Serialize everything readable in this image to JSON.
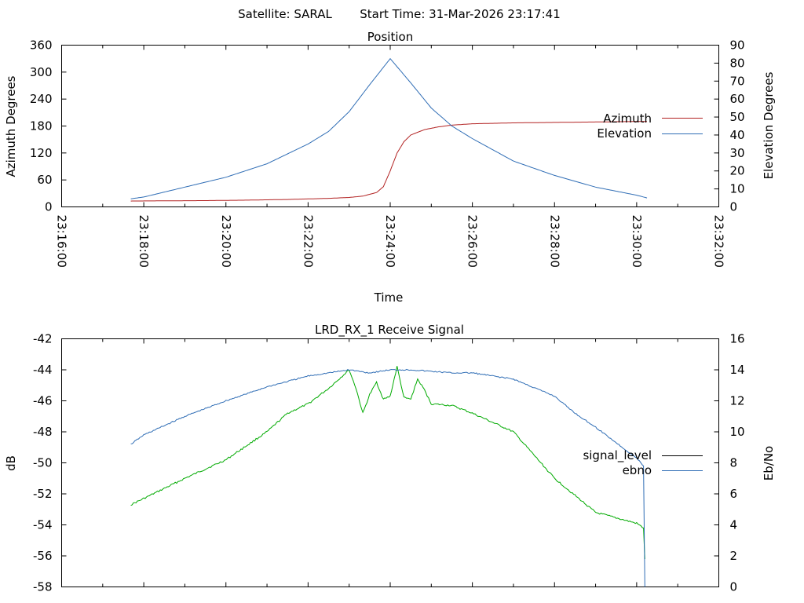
{
  "header": {
    "satellite": "Satellite: SARAL",
    "start_time": "Start Time: 31-Mar-2026 23:17:41"
  },
  "chart_data": [
    {
      "id": "position",
      "type": "line",
      "title": "Position",
      "xlabel": "Time",
      "ylabel": "Azimuth Degrees",
      "y2label": "Elevation Degrees",
      "xlim": [
        "23:16:00",
        "23:32:00"
      ],
      "x_ticks": [
        "23:16:00",
        "23:18:00",
        "23:20:00",
        "23:22:00",
        "23:24:00",
        "23:26:00",
        "23:28:00",
        "23:30:00",
        "23:32:00"
      ],
      "ylim": [
        0,
        360
      ],
      "y_ticks": [
        "0",
        "60",
        "120",
        "180",
        "240",
        "300",
        "360"
      ],
      "y2lim": [
        0,
        90
      ],
      "y2_ticks": [
        "0",
        "10",
        "20",
        "30",
        "40",
        "50",
        "60",
        "70",
        "80",
        "90"
      ],
      "grid": false,
      "legend": "right",
      "series": [
        {
          "name": "Azimuth",
          "axis": "y",
          "color": "#b22222",
          "x": [
            "23:17:41",
            "23:18:30",
            "23:19:30",
            "23:20:30",
            "23:21:30",
            "23:22:30",
            "23:23:00",
            "23:23:20",
            "23:23:40",
            "23:23:50",
            "23:24:00",
            "23:24:10",
            "23:24:20",
            "23:24:30",
            "23:24:50",
            "23:25:10",
            "23:25:30",
            "23:26:00",
            "23:27:00",
            "23:28:00",
            "23:29:00",
            "23:30:00",
            "23:30:15"
          ],
          "values": [
            13,
            13.5,
            14,
            15,
            16.5,
            19,
            21,
            24,
            32,
            45,
            80,
            120,
            145,
            160,
            172,
            178,
            182,
            185,
            187,
            188,
            189,
            190,
            190
          ]
        },
        {
          "name": "Elevation",
          "axis": "y2",
          "color": "#2f6db5",
          "x": [
            "23:17:41",
            "23:18:00",
            "23:19:00",
            "23:20:00",
            "23:21:00",
            "23:22:00",
            "23:22:30",
            "23:23:00",
            "23:23:30",
            "23:24:00",
            "23:24:30",
            "23:25:00",
            "23:25:30",
            "23:26:00",
            "23:27:00",
            "23:28:00",
            "23:29:00",
            "23:30:00",
            "23:30:15"
          ],
          "values": [
            4.5,
            5.5,
            11,
            16.5,
            24,
            35,
            42,
            53,
            68,
            82.5,
            69,
            55,
            45,
            38,
            25.5,
            17.5,
            11,
            6.5,
            5
          ]
        }
      ]
    },
    {
      "id": "receive_signal",
      "type": "line",
      "title": "LRD_RX_1 Receive Signal",
      "xlabel": "",
      "ylabel": "dB",
      "y2label": "Eb/No",
      "xlim": [
        "23:16:00",
        "23:32:00"
      ],
      "ylim": [
        -58,
        -42
      ],
      "y_ticks": [
        "-58",
        "-56",
        "-54",
        "-52",
        "-50",
        "-48",
        "-46",
        "-44",
        "-42"
      ],
      "y2lim": [
        0,
        16
      ],
      "y2_ticks": [
        "0",
        "2",
        "4",
        "6",
        "8",
        "10",
        "12",
        "14",
        "16"
      ],
      "grid": false,
      "legend": "right",
      "series": [
        {
          "name": "signal_level",
          "axis": "y",
          "color": "#00aa00",
          "x": [
            "23:17:41",
            "23:18:00",
            "23:19:00",
            "23:20:00",
            "23:21:00",
            "23:21:30",
            "23:22:00",
            "23:22:30",
            "23:23:00",
            "23:23:10",
            "23:23:20",
            "23:23:30",
            "23:23:40",
            "23:23:50",
            "23:24:00",
            "23:24:10",
            "23:24:20",
            "23:24:30",
            "23:24:40",
            "23:24:50",
            "23:25:00",
            "23:25:30",
            "23:26:00",
            "23:27:00",
            "23:28:00",
            "23:29:00",
            "23:30:00",
            "23:30:10",
            "23:30:12"
          ],
          "values": [
            -52.7,
            -52.3,
            -51,
            -49.8,
            -48,
            -46.8,
            -46.2,
            -45.2,
            -44,
            -45.2,
            -46.8,
            -45.6,
            -44.8,
            -45.9,
            -45.7,
            -43.8,
            -45.8,
            -45.9,
            -44.6,
            -45.3,
            -46.2,
            -46.3,
            -46.8,
            -48,
            -51,
            -53.2,
            -53.9,
            -54.2,
            -56.2
          ]
        },
        {
          "name": "ebno",
          "axis": "y2",
          "color": "#2f6db5",
          "x": [
            "23:17:41",
            "23:18:00",
            "23:19:00",
            "23:20:00",
            "23:21:00",
            "23:22:00",
            "23:22:30",
            "23:23:00",
            "23:23:30",
            "23:24:00",
            "23:24:30",
            "23:25:00",
            "23:25:30",
            "23:26:00",
            "23:27:00",
            "23:28:00",
            "23:28:30",
            "23:29:00",
            "23:29:30",
            "23:30:00",
            "23:30:10",
            "23:30:12"
          ],
          "values": [
            9.2,
            9.8,
            11,
            12,
            12.9,
            13.6,
            13.8,
            14,
            13.8,
            14,
            14,
            13.9,
            13.8,
            13.8,
            13.4,
            12.3,
            11.2,
            10.3,
            9.3,
            8.3,
            7.8,
            0
          ]
        }
      ]
    }
  ]
}
